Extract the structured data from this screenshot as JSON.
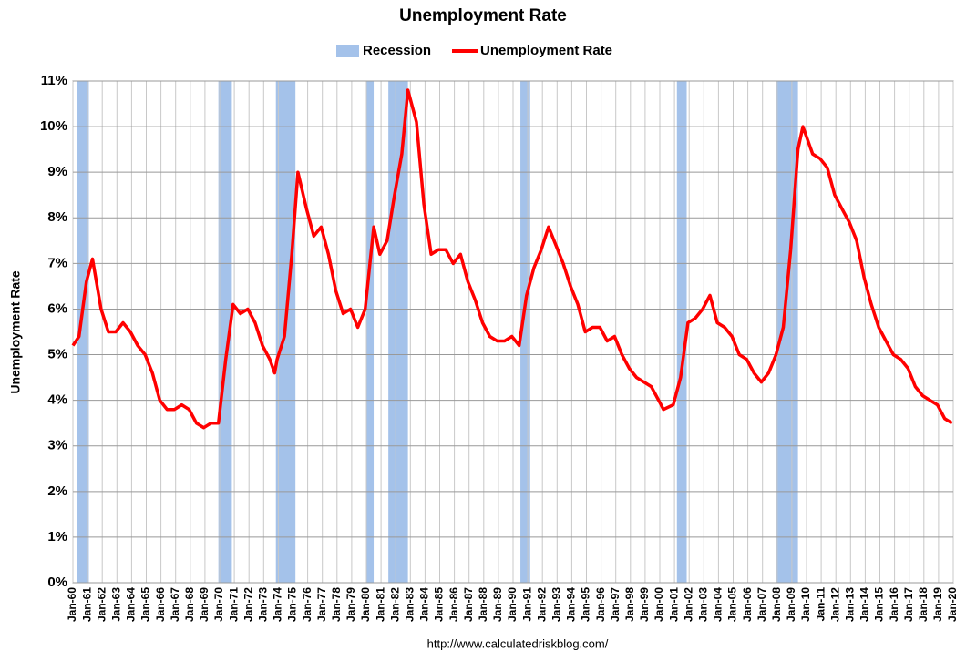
{
  "chart_data": {
    "type": "line",
    "title": "Unemployment Rate",
    "y_label": "Unemployment Rate",
    "source": "http://www.calculatedriskblog.com/",
    "grid": true,
    "legend": "top",
    "xlim": [
      "1960-01",
      "2020-01"
    ],
    "ylim": [
      0,
      11
    ],
    "yticks": [
      {
        "value": 0,
        "label": "0%"
      },
      {
        "value": 1,
        "label": "1%"
      },
      {
        "value": 2,
        "label": "2%"
      },
      {
        "value": 3,
        "label": "3%"
      },
      {
        "value": 4,
        "label": "4%"
      },
      {
        "value": 5,
        "label": "5%"
      },
      {
        "value": 6,
        "label": "6%"
      },
      {
        "value": 7,
        "label": "7%"
      },
      {
        "value": 8,
        "label": "8%"
      },
      {
        "value": 9,
        "label": "9%"
      },
      {
        "value": 10,
        "label": "10%"
      },
      {
        "value": 11,
        "label": "11%"
      }
    ],
    "xticks": [
      {
        "value": "1960-01",
        "label": "Jan-60"
      },
      {
        "value": "1961-01",
        "label": "Jan-61"
      },
      {
        "value": "1962-01",
        "label": "Jan-62"
      },
      {
        "value": "1963-01",
        "label": "Jan-63"
      },
      {
        "value": "1964-01",
        "label": "Jan-64"
      },
      {
        "value": "1965-01",
        "label": "Jan-65"
      },
      {
        "value": "1966-01",
        "label": "Jan-66"
      },
      {
        "value": "1967-01",
        "label": "Jan-67"
      },
      {
        "value": "1968-01",
        "label": "Jan-68"
      },
      {
        "value": "1969-01",
        "label": "Jan-69"
      },
      {
        "value": "1970-01",
        "label": "Jan-70"
      },
      {
        "value": "1971-01",
        "label": "Jan-71"
      },
      {
        "value": "1972-01",
        "label": "Jan-72"
      },
      {
        "value": "1973-01",
        "label": "Jan-73"
      },
      {
        "value": "1974-01",
        "label": "Jan-74"
      },
      {
        "value": "1975-01",
        "label": "Jan-75"
      },
      {
        "value": "1976-01",
        "label": "Jan-76"
      },
      {
        "value": "1977-01",
        "label": "Jan-77"
      },
      {
        "value": "1978-01",
        "label": "Jan-78"
      },
      {
        "value": "1979-01",
        "label": "Jan-79"
      },
      {
        "value": "1980-01",
        "label": "Jan-80"
      },
      {
        "value": "1981-01",
        "label": "Jan-81"
      },
      {
        "value": "1982-01",
        "label": "Jan-82"
      },
      {
        "value": "1983-01",
        "label": "Jan-83"
      },
      {
        "value": "1984-01",
        "label": "Jan-84"
      },
      {
        "value": "1985-01",
        "label": "Jan-85"
      },
      {
        "value": "1986-01",
        "label": "Jan-86"
      },
      {
        "value": "1987-01",
        "label": "Jan-87"
      },
      {
        "value": "1988-01",
        "label": "Jan-88"
      },
      {
        "value": "1989-01",
        "label": "Jan-89"
      },
      {
        "value": "1990-01",
        "label": "Jan-90"
      },
      {
        "value": "1991-01",
        "label": "Jan-91"
      },
      {
        "value": "1992-01",
        "label": "Jan-92"
      },
      {
        "value": "1993-01",
        "label": "Jan-93"
      },
      {
        "value": "1994-01",
        "label": "Jan-94"
      },
      {
        "value": "1995-01",
        "label": "Jan-95"
      },
      {
        "value": "1996-01",
        "label": "Jan-96"
      },
      {
        "value": "1997-01",
        "label": "Jan-97"
      },
      {
        "value": "1998-01",
        "label": "Jan-98"
      },
      {
        "value": "1999-01",
        "label": "Jan-99"
      },
      {
        "value": "2000-01",
        "label": "Jan-00"
      },
      {
        "value": "2001-01",
        "label": "Jan-01"
      },
      {
        "value": "2002-01",
        "label": "Jan-02"
      },
      {
        "value": "2003-01",
        "label": "Jan-03"
      },
      {
        "value": "2004-01",
        "label": "Jan-04"
      },
      {
        "value": "2005-01",
        "label": "Jan-05"
      },
      {
        "value": "2006-01",
        "label": "Jan-06"
      },
      {
        "value": "2007-01",
        "label": "Jan-07"
      },
      {
        "value": "2008-01",
        "label": "Jan-08"
      },
      {
        "value": "2009-01",
        "label": "Jan-09"
      },
      {
        "value": "2010-01",
        "label": "Jan-10"
      },
      {
        "value": "2011-01",
        "label": "Jan-11"
      },
      {
        "value": "2012-01",
        "label": "Jan-12"
      },
      {
        "value": "2013-01",
        "label": "Jan-13"
      },
      {
        "value": "2014-01",
        "label": "Jan-14"
      },
      {
        "value": "2015-01",
        "label": "Jan-15"
      },
      {
        "value": "2016-01",
        "label": "Jan-16"
      },
      {
        "value": "2017-01",
        "label": "Jan-17"
      },
      {
        "value": "2018-01",
        "label": "Jan-18"
      },
      {
        "value": "2019-01",
        "label": "Jan-19"
      },
      {
        "value": "2020-01",
        "label": "Jan-20"
      }
    ],
    "x": [
      "1960-01",
      "1960-06",
      "1960-12",
      "1961-05",
      "1961-12",
      "1962-06",
      "1962-12",
      "1963-06",
      "1963-12",
      "1964-06",
      "1964-12",
      "1965-06",
      "1965-12",
      "1966-06",
      "1966-12",
      "1967-06",
      "1967-12",
      "1968-06",
      "1968-12",
      "1969-06",
      "1969-12",
      "1970-06",
      "1970-12",
      "1971-06",
      "1971-12",
      "1972-06",
      "1972-12",
      "1973-06",
      "1973-10",
      "1973-12",
      "1974-06",
      "1974-12",
      "1975-05",
      "1975-12",
      "1976-06",
      "1976-12",
      "1977-06",
      "1977-12",
      "1978-06",
      "1978-12",
      "1979-06",
      "1979-12",
      "1980-07",
      "1980-12",
      "1981-06",
      "1981-12",
      "1982-06",
      "1982-11",
      "1983-06",
      "1983-12",
      "1984-06",
      "1984-12",
      "1985-06",
      "1985-12",
      "1986-06",
      "1986-12",
      "1987-06",
      "1987-12",
      "1988-06",
      "1988-12",
      "1989-06",
      "1989-12",
      "1990-06",
      "1990-12",
      "1991-06",
      "1991-12",
      "1992-06",
      "1992-12",
      "1993-06",
      "1993-12",
      "1994-06",
      "1994-12",
      "1995-06",
      "1995-12",
      "1996-06",
      "1996-12",
      "1997-06",
      "1997-12",
      "1998-06",
      "1998-12",
      "1999-06",
      "1999-12",
      "2000-04",
      "2000-12",
      "2001-06",
      "2001-12",
      "2002-06",
      "2002-12",
      "2003-06",
      "2003-12",
      "2004-06",
      "2004-12",
      "2005-06",
      "2005-12",
      "2006-06",
      "2006-12",
      "2007-06",
      "2007-12",
      "2008-06",
      "2008-12",
      "2009-06",
      "2009-10",
      "2010-06",
      "2010-12",
      "2011-06",
      "2011-12",
      "2012-06",
      "2012-12",
      "2013-06",
      "2013-12",
      "2014-06",
      "2014-12",
      "2015-06",
      "2015-12",
      "2016-06",
      "2016-12",
      "2017-06",
      "2017-12",
      "2018-06",
      "2018-12",
      "2019-06",
      "2019-12"
    ],
    "series": [
      {
        "name": "Recession",
        "color": "#a4c2ea",
        "periods": [
          [
            "1960-04",
            "1961-02"
          ],
          [
            "1969-12",
            "1970-11"
          ],
          [
            "1973-11",
            "1975-03"
          ],
          [
            "1980-01",
            "1980-07"
          ],
          [
            "1981-07",
            "1982-11"
          ],
          [
            "1990-07",
            "1991-03"
          ],
          [
            "2001-03",
            "2001-11"
          ],
          [
            "2007-12",
            "2009-06"
          ]
        ]
      },
      {
        "name": "Unemployment Rate",
        "color": "#ff0000",
        "values": [
          5.2,
          5.4,
          6.6,
          7.1,
          6.0,
          5.5,
          5.5,
          5.7,
          5.5,
          5.2,
          5.0,
          4.6,
          4.0,
          3.8,
          3.8,
          3.9,
          3.8,
          3.5,
          3.4,
          3.5,
          3.5,
          4.9,
          6.1,
          5.9,
          6.0,
          5.7,
          5.2,
          4.9,
          4.6,
          4.9,
          5.4,
          7.2,
          9.0,
          8.2,
          7.6,
          7.8,
          7.2,
          6.4,
          5.9,
          6.0,
          5.6,
          6.0,
          7.8,
          7.2,
          7.5,
          8.5,
          9.4,
          10.8,
          10.1,
          8.3,
          7.2,
          7.3,
          7.3,
          7.0,
          7.2,
          6.6,
          6.2,
          5.7,
          5.4,
          5.3,
          5.3,
          5.4,
          5.2,
          6.3,
          6.9,
          7.3,
          7.8,
          7.4,
          7.0,
          6.5,
          6.1,
          5.5,
          5.6,
          5.6,
          5.3,
          5.4,
          5.0,
          4.7,
          4.5,
          4.4,
          4.3,
          4.0,
          3.8,
          3.9,
          4.5,
          5.7,
          5.8,
          6.0,
          6.3,
          5.7,
          5.6,
          5.4,
          5.0,
          4.9,
          4.6,
          4.4,
          4.6,
          5.0,
          5.6,
          7.3,
          9.5,
          10.0,
          9.4,
          9.3,
          9.1,
          8.5,
          8.2,
          7.9,
          7.5,
          6.7,
          6.1,
          5.6,
          5.3,
          5.0,
          4.9,
          4.7,
          4.3,
          4.1,
          4.0,
          3.9,
          3.6,
          3.5
        ]
      }
    ]
  }
}
